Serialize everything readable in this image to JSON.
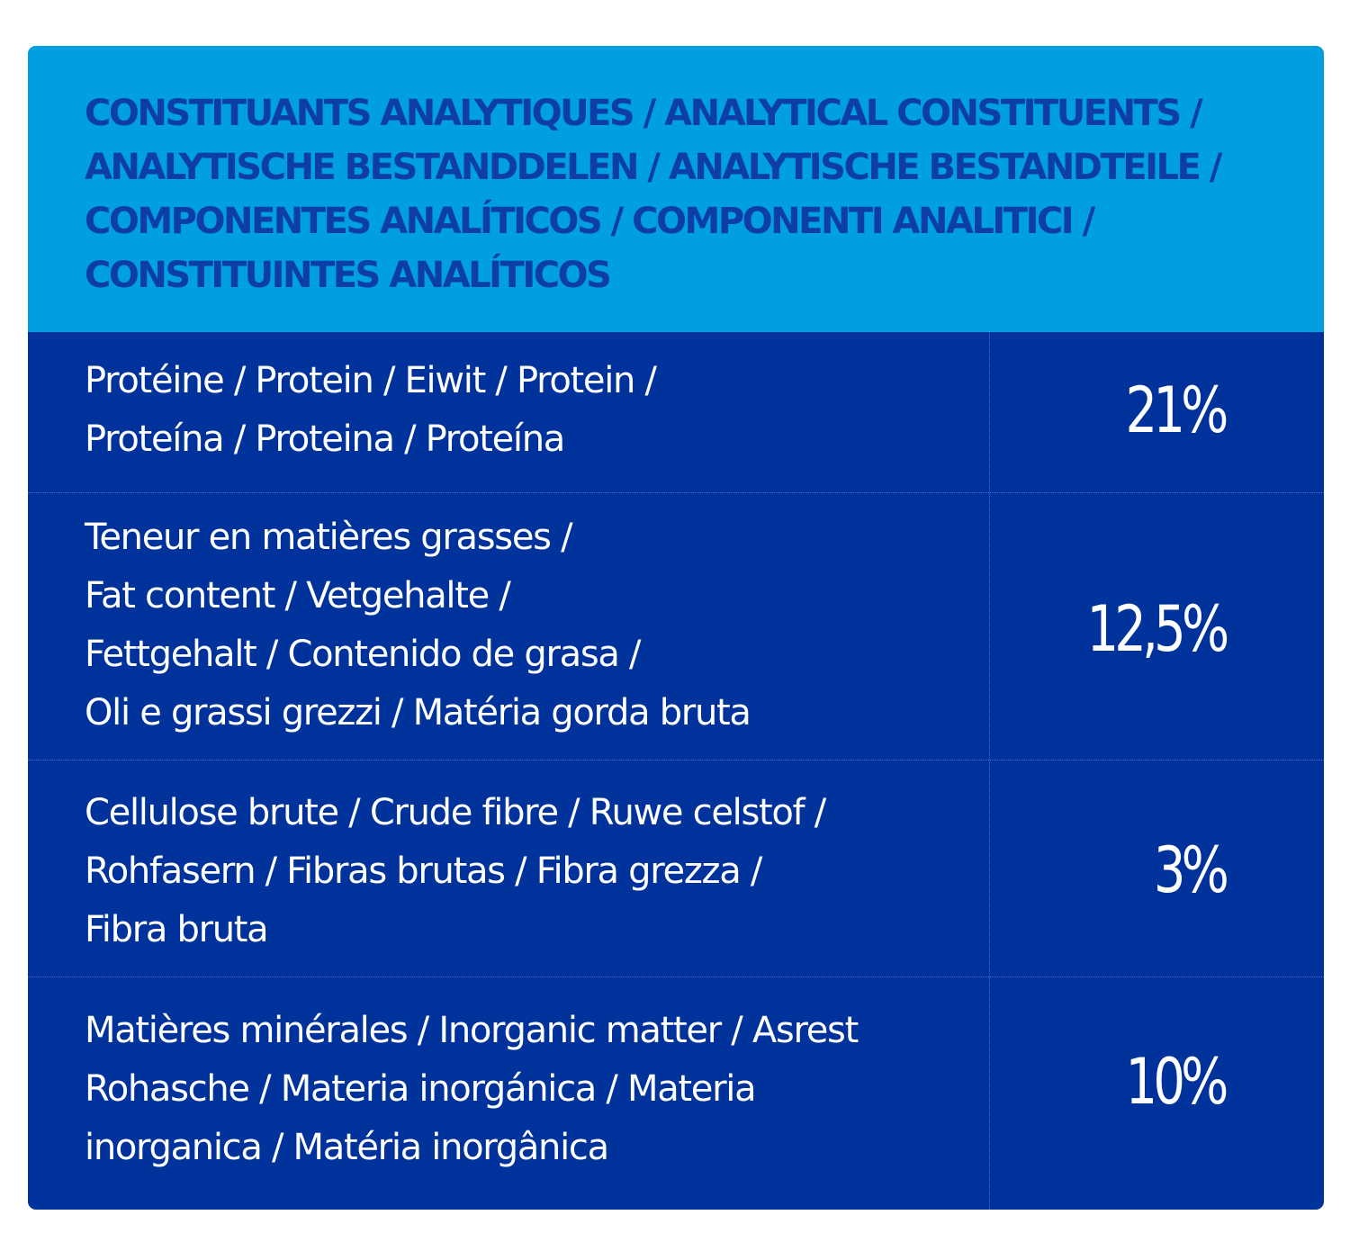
{
  "header": {
    "lines": [
      "CONSTITUANTS ANALYTIQUES / ANALYTICAL CONSTITUENTS /",
      "ANALYTISCHE BESTANDDELEN / ANALYTISCHE BESTANDTEILE /",
      "COMPONENTES ANALÍTICOS / COMPONENTI ANALITICI /",
      "CONSTITUINTES ANALÍTICOS"
    ]
  },
  "rows": [
    {
      "label_lines": [
        "Protéine / Protein / Eiwit / Protein /",
        "Proteína / Proteina / Proteína"
      ],
      "value": "21%"
    },
    {
      "label_lines": [
        "Teneur en matières grasses /",
        "Fat content / Vetgehalte /",
        "Fettgehalt / Contenido de grasa /",
        "Oli e grassi grezzi / Matéria gorda bruta"
      ],
      "value": "12,5%"
    },
    {
      "label_lines": [
        "Cellulose brute / Crude fibre / Ruwe celstof /",
        "Rohfasern / Fibras brutas / Fibra grezza /",
        "Fibra bruta"
      ],
      "value": "3%"
    },
    {
      "label_lines": [
        "Matières minérales / Inorganic matter / Asrest",
        "Rohasche / Materia inorgánica / Materia",
        "inorganica / Matéria inorgânica"
      ],
      "value": "10%"
    }
  ],
  "colors": {
    "header_bg": "#009fe0",
    "header_text": "#0d3da6",
    "body_bg": "#00329c",
    "body_text": "#ffffff",
    "divider": "#3f72d4"
  }
}
